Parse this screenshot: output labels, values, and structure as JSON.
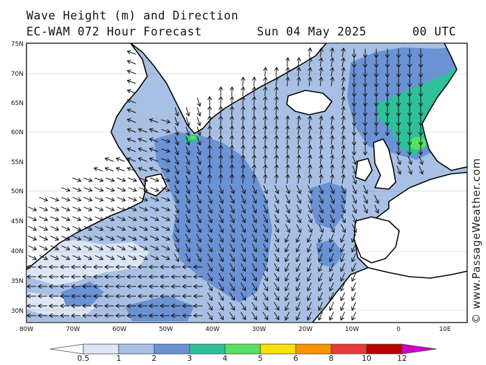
{
  "header": {
    "line1": "Wave Height (m) and Direction",
    "model": "EC-WAM 072 Hour Forecast",
    "date": "Sun 04 May 2025",
    "time": "00 UTC"
  },
  "credit": "© www.PassageWeather.com",
  "map": {
    "lat_labels": [
      "75N",
      "70N",
      "65N",
      "60N",
      "55N",
      "50N",
      "45N",
      "40N",
      "35N",
      "30N"
    ],
    "lon_labels": [
      "80W",
      "70W",
      "60W",
      "50W",
      "40W",
      "30W",
      "20W",
      "10W",
      "0",
      "10E"
    ],
    "land_color": "#ffffff",
    "ocean_base_color": "#a8c0e4"
  },
  "colorbar": {
    "labels": [
      "0.5",
      "1",
      "2",
      "3",
      "4",
      "5",
      "6",
      "8",
      "10",
      "12"
    ],
    "colors": [
      "#dde6f5",
      "#a8c0e4",
      "#6a92d4",
      "#2fbf9a",
      "#58e060",
      "#f8e000",
      "#f79400",
      "#e83a3a",
      "#b80000",
      "#d000c8"
    ]
  }
}
